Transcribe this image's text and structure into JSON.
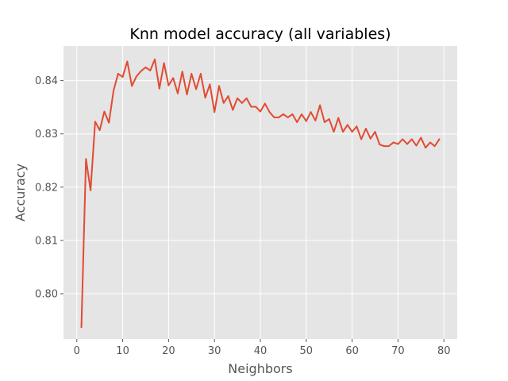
{
  "chart_data": {
    "type": "line",
    "title": "Knn model accuracy (all variables)",
    "xlabel": "Neighbors",
    "ylabel": "Accuracy",
    "xlim": [
      -2.9,
      82.9
    ],
    "ylim": [
      0.7915,
      0.8465
    ],
    "xticks": [
      0,
      10,
      20,
      30,
      40,
      50,
      60,
      70,
      80
    ],
    "yticks": [
      0.8,
      0.81,
      0.82,
      0.83,
      0.84
    ],
    "ytick_labels": [
      "0.80",
      "0.81",
      "0.82",
      "0.83",
      "0.84"
    ],
    "grid": true,
    "style": "ggplot",
    "line_color": "#E24A33",
    "background_color": "#E5E5E5",
    "series": [
      {
        "x": [
          1,
          2,
          3,
          4,
          5,
          6,
          7,
          8,
          9,
          10,
          11,
          12,
          13,
          14,
          15,
          16,
          17,
          18,
          19,
          20,
          21,
          22,
          23,
          24,
          25,
          26,
          27,
          28,
          29,
          30,
          31,
          32,
          33,
          34,
          35,
          36,
          37,
          38,
          39,
          40,
          41,
          42,
          43,
          44,
          45,
          46,
          47,
          48,
          49,
          50,
          51,
          52,
          53,
          54,
          55,
          56,
          57,
          58,
          59,
          60,
          61,
          62,
          63,
          64,
          65,
          66,
          67,
          68,
          69,
          70,
          71,
          72,
          73,
          74,
          75,
          76,
          77,
          78,
          79
        ],
        "y": [
          0.7937,
          0.8253,
          0.8194,
          0.8323,
          0.8307,
          0.8342,
          0.8321,
          0.8381,
          0.8413,
          0.8407,
          0.8436,
          0.839,
          0.8408,
          0.8418,
          0.8425,
          0.8419,
          0.844,
          0.8385,
          0.8433,
          0.8391,
          0.8405,
          0.8376,
          0.8417,
          0.8374,
          0.8413,
          0.8384,
          0.8413,
          0.8368,
          0.8393,
          0.8341,
          0.839,
          0.8358,
          0.8371,
          0.8345,
          0.8367,
          0.8358,
          0.8367,
          0.8351,
          0.8351,
          0.8342,
          0.8357,
          0.8341,
          0.8331,
          0.8331,
          0.8337,
          0.8331,
          0.8337,
          0.8322,
          0.8337,
          0.8324,
          0.8341,
          0.8325,
          0.8354,
          0.8322,
          0.8328,
          0.8304,
          0.833,
          0.8304,
          0.8317,
          0.8304,
          0.8314,
          0.829,
          0.831,
          0.8291,
          0.8304,
          0.828,
          0.8277,
          0.8277,
          0.8284,
          0.8281,
          0.829,
          0.8281,
          0.829,
          0.8278,
          0.8293,
          0.8274,
          0.8284,
          0.8277,
          0.829
        ]
      }
    ]
  }
}
